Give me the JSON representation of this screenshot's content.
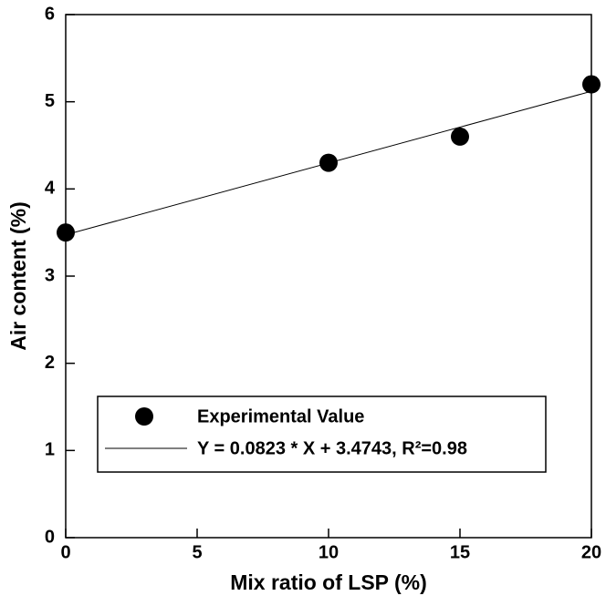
{
  "chart_data": {
    "type": "scatter",
    "x_label": "Mix ratio of LSP (%)",
    "y_label": "Air content (%)",
    "x": [
      0,
      10,
      15,
      20
    ],
    "series": [
      {
        "name": "Experimental Value",
        "color": "#000000",
        "values": [
          3.5,
          4.3,
          4.6,
          5.2
        ]
      }
    ],
    "fit": {
      "name": "Y = 0.0823 * X + 3.4743, R²=0.98",
      "slope": 0.0823,
      "intercept": 3.4743,
      "color": "#000000"
    },
    "xlim": [
      0,
      20
    ],
    "xticks": [
      0,
      5,
      10,
      15,
      20
    ],
    "ylim": [
      0,
      6
    ],
    "yticks": [
      0,
      1,
      2,
      3,
      4,
      5,
      6
    ],
    "grid": false
  }
}
